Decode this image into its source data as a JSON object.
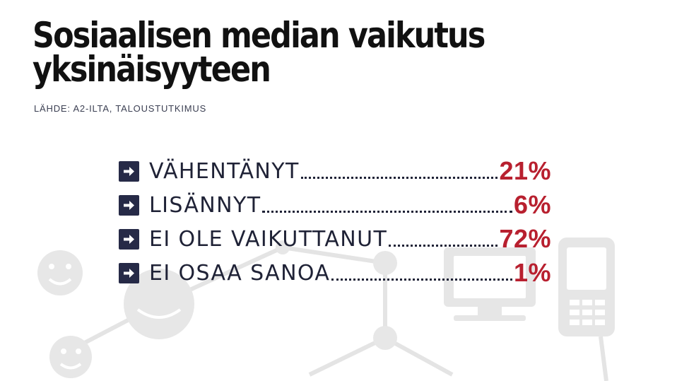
{
  "title_line1": "Sosiaalisen median vaikutus",
  "title_line2": "yksinäisyyteen",
  "source": "LÄHDE: A2-ILTA, TALOUSTUTKIMUS",
  "colors": {
    "accent": "#b8202f",
    "bullet": "#262a47",
    "text": "#1f2236"
  },
  "chart_data": {
    "type": "table",
    "title": "Sosiaalisen median vaikutus yksinäisyyteen",
    "rows": [
      {
        "label": "VÄHENTÄNYT",
        "value_text": "21%",
        "value": 21
      },
      {
        "label": "LISÄNNYT",
        "value_text": "6%",
        "value": 6
      },
      {
        "label": "EI OLE VAIKUTTANUT",
        "value_text": "72%",
        "value": 72
      },
      {
        "label": "EI OSAA SANOA",
        "value_text": "1%",
        "value": 1
      }
    ]
  }
}
